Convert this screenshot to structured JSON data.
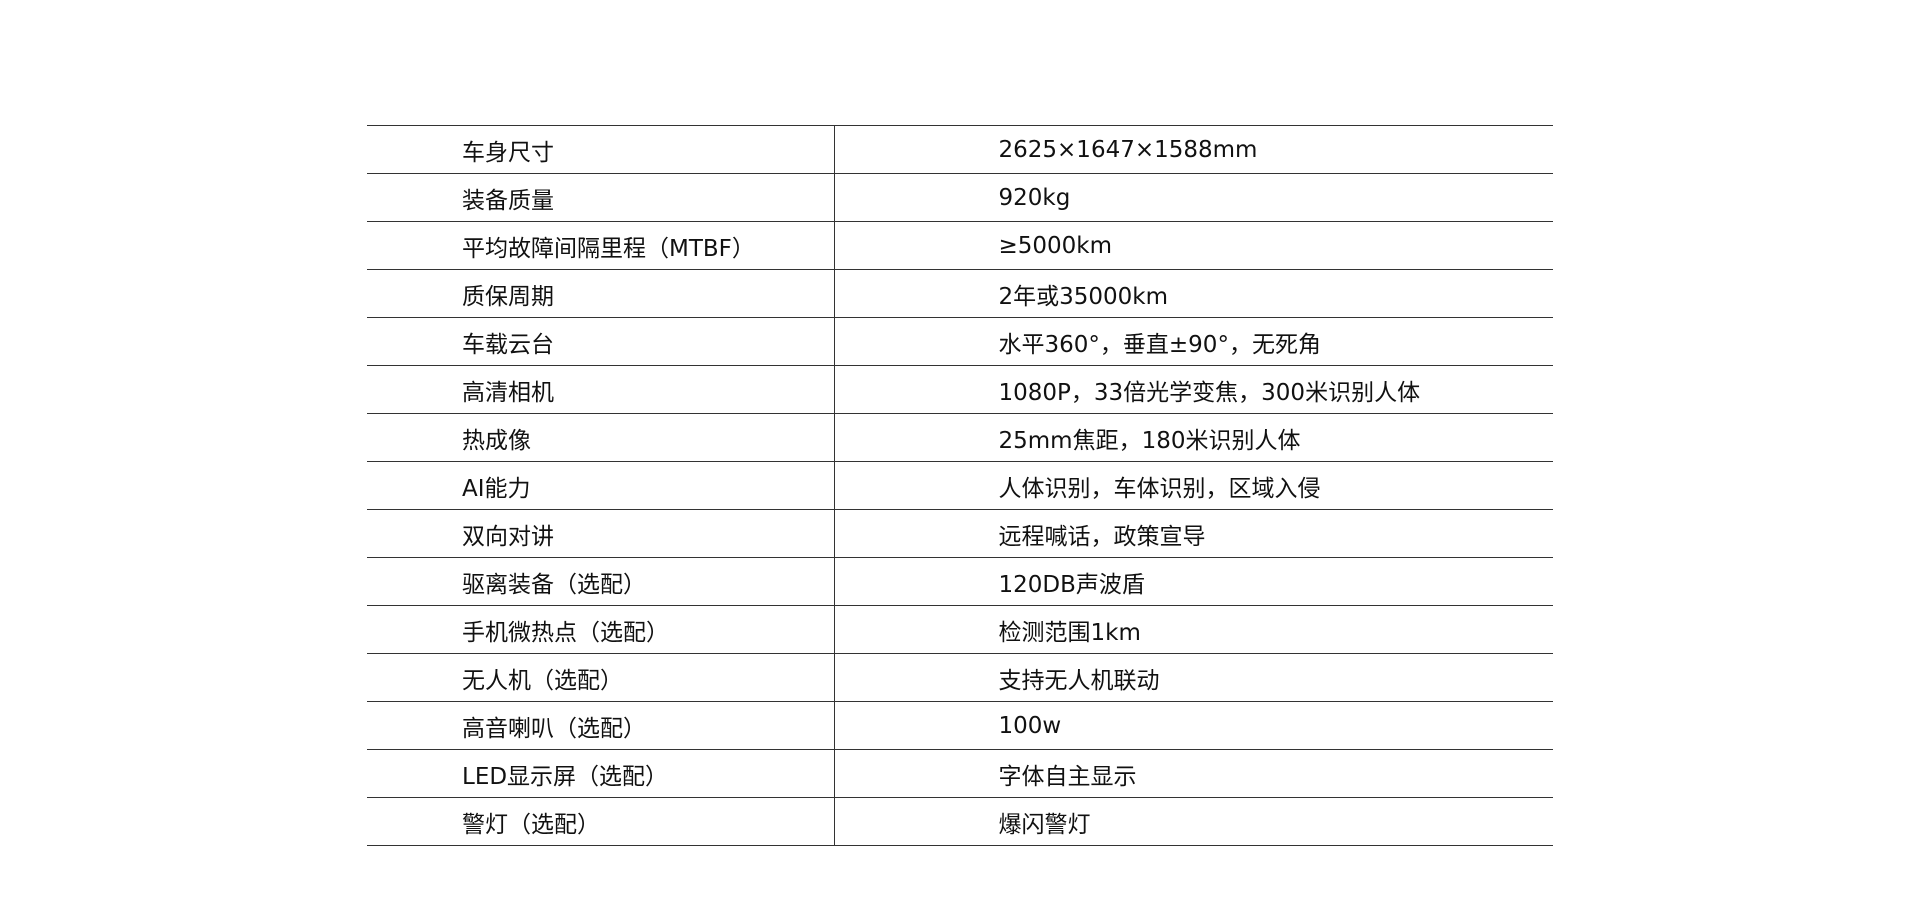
{
  "table": {
    "rows": [
      [
        "车身尺寸",
        "2625×1647×1588mm"
      ],
      [
        "装备质量",
        "920kg"
      ],
      [
        "平均故障间隔里程（MTBF）",
        "≥5000km"
      ],
      [
        "质保周期",
        "2年或35000km"
      ],
      [
        "车载云台",
        "水平360°，垂直±90°，无死角"
      ],
      [
        "高清相机",
        "1080P，33倍光学变焦，300米识别人体"
      ],
      [
        "热成像",
        "25mm焦距，180米识别人体"
      ],
      [
        "AI能力",
        "人体识别，车体识别，区域入侵"
      ],
      [
        "双向对讲",
        "远程喊话，政策宣导"
      ],
      [
        "驱离装备（选配）",
        "120DB声波盾"
      ],
      [
        "手机微热点（选配）",
        "检测范围1km"
      ],
      [
        "无人机（选配）",
        "支持无人机联动"
      ],
      [
        "高音喇叭（选配）",
        "100w"
      ],
      [
        "LED显示屏（选配）",
        "字体自主显示"
      ],
      [
        "警灯（选配）",
        "爆闪警灯"
      ]
    ]
  }
}
